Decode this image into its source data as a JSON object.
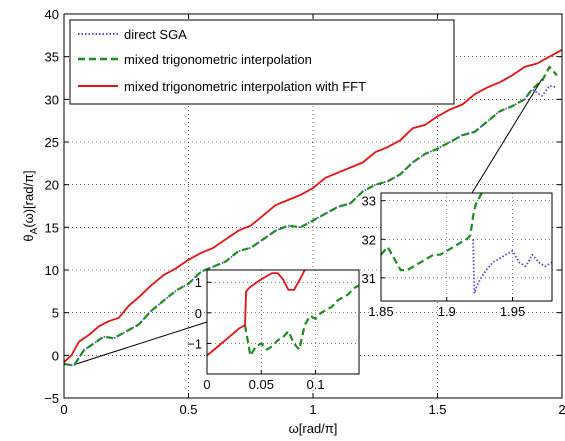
{
  "chart_data": {
    "type": "line",
    "title": "",
    "xlabel": "ω[rad/π]",
    "ylabel_main": "θ",
    "ylabel_sub": "A",
    "ylabel_rest": "(ω)[rad/π]",
    "xlim": [
      0,
      2
    ],
    "ylim": [
      -5,
      40
    ],
    "xticks": [
      "0",
      "0.5",
      "1",
      "1.5",
      "2"
    ],
    "yticks": [
      "−5",
      "0",
      "5",
      "10",
      "15",
      "20",
      "25",
      "30",
      "35",
      "40"
    ],
    "grid": "dotted",
    "legend_position": "top-left",
    "colors": {
      "direct": "#4b4bdc",
      "mixed": "#1e8c1e",
      "fft": "#e11414"
    },
    "series": [
      {
        "name": "direct SGA",
        "style": "dotted",
        "x": [
          0.0,
          0.04,
          0.08,
          0.12,
          0.16,
          0.2,
          0.25,
          0.3,
          0.35,
          0.4,
          0.45,
          0.5,
          0.55,
          0.6,
          0.65,
          0.7,
          0.75,
          0.8,
          0.85,
          0.9,
          0.95,
          1.0,
          1.05,
          1.1,
          1.15,
          1.2,
          1.25,
          1.3,
          1.35,
          1.4,
          1.45,
          1.5,
          1.55,
          1.6,
          1.65,
          1.7,
          1.75,
          1.8,
          1.85,
          1.88,
          1.92,
          1.95,
          1.98
        ],
        "y": [
          -1.0,
          -1.2,
          0.6,
          1.4,
          2.2,
          2.0,
          2.8,
          3.6,
          5.2,
          6.4,
          7.6,
          8.4,
          9.8,
          10.4,
          11.0,
          12.2,
          12.6,
          13.6,
          14.6,
          15.2,
          15.0,
          15.8,
          16.6,
          17.4,
          17.8,
          19.2,
          20.0,
          20.4,
          21.2,
          22.6,
          23.6,
          24.2,
          25.0,
          25.8,
          26.2,
          27.4,
          28.6,
          29.2,
          30.0,
          31.2,
          30.4,
          31.6,
          31.4
        ]
      },
      {
        "name": "mixed trigonometric interpolation",
        "style": "dashed",
        "x": [
          0.0,
          0.04,
          0.08,
          0.12,
          0.16,
          0.2,
          0.25,
          0.3,
          0.35,
          0.4,
          0.45,
          0.5,
          0.55,
          0.6,
          0.65,
          0.7,
          0.75,
          0.8,
          0.85,
          0.9,
          0.95,
          1.0,
          1.05,
          1.1,
          1.15,
          1.2,
          1.25,
          1.3,
          1.35,
          1.4,
          1.45,
          1.5,
          1.55,
          1.6,
          1.65,
          1.7,
          1.75,
          1.8,
          1.85,
          1.88,
          1.92,
          1.95,
          1.98
        ],
        "y": [
          -1.0,
          -1.2,
          0.6,
          1.4,
          2.2,
          2.0,
          2.8,
          3.6,
          5.2,
          6.4,
          7.6,
          8.4,
          9.8,
          10.4,
          11.0,
          12.2,
          12.6,
          13.6,
          14.6,
          15.2,
          15.0,
          15.8,
          16.6,
          17.4,
          17.8,
          19.2,
          20.0,
          20.4,
          21.2,
          22.6,
          23.6,
          24.2,
          25.0,
          25.8,
          26.2,
          27.4,
          28.6,
          29.2,
          30.0,
          31.2,
          32.2,
          33.8,
          32.8
        ]
      },
      {
        "name": "mixed trigonometric interpolation with FFT",
        "style": "solid",
        "x": [
          0.0,
          0.03,
          0.06,
          0.1,
          0.14,
          0.18,
          0.22,
          0.26,
          0.3,
          0.35,
          0.4,
          0.45,
          0.5,
          0.55,
          0.6,
          0.65,
          0.7,
          0.75,
          0.8,
          0.85,
          0.9,
          0.95,
          1.0,
          1.05,
          1.1,
          1.15,
          1.2,
          1.25,
          1.3,
          1.35,
          1.4,
          1.45,
          1.5,
          1.55,
          1.6,
          1.65,
          1.7,
          1.75,
          1.8,
          1.85,
          1.9,
          1.95,
          2.0
        ],
        "y": [
          -0.8,
          0.0,
          1.6,
          2.4,
          3.4,
          4.0,
          4.4,
          5.8,
          6.8,
          8.2,
          9.4,
          10.2,
          11.2,
          12.0,
          12.6,
          13.6,
          14.6,
          15.2,
          16.4,
          17.6,
          18.2,
          18.8,
          19.6,
          20.8,
          21.4,
          22.0,
          22.6,
          23.8,
          24.4,
          25.2,
          26.6,
          27.0,
          28.0,
          28.8,
          29.4,
          30.6,
          31.4,
          32.0,
          32.8,
          33.8,
          34.2,
          35.0,
          35.8
        ]
      }
    ],
    "insets": [
      {
        "id": "inset-low",
        "xlim": [
          0,
          0.14
        ],
        "ylim": [
          -2,
          1.4
        ],
        "xticks": [
          "0",
          "0.05",
          "0.1"
        ],
        "yticks": [
          "−1",
          "0",
          "1"
        ],
        "series": [
          {
            "name": "mixed trigonometric interpolation",
            "x": [
              0.035,
              0.04,
              0.045,
              0.05,
              0.055,
              0.06,
              0.065,
              0.07,
              0.075,
              0.08,
              0.085,
              0.09,
              0.095,
              0.1,
              0.105,
              0.11,
              0.115,
              0.12,
              0.125,
              0.13,
              0.135,
              0.14
            ],
            "y": [
              -0.4,
              -1.4,
              -1.1,
              -1.0,
              -1.2,
              -1.1,
              -0.9,
              -0.8,
              -0.6,
              -1.0,
              -1.2,
              -0.4,
              -0.1,
              -0.2,
              0.0,
              0.1,
              0.2,
              0.4,
              0.5,
              0.6,
              0.8,
              0.9
            ]
          },
          {
            "name": "mixed trigonometric interpolation with FFT",
            "x": [
              0.0,
              0.01,
              0.02,
              0.03,
              0.035,
              0.036,
              0.04,
              0.05,
              0.06,
              0.065,
              0.07,
              0.075,
              0.08,
              0.085,
              0.09,
              0.095
            ],
            "y": [
              -1.4,
              -1.1,
              -0.8,
              -0.5,
              -0.4,
              0.7,
              0.85,
              1.1,
              1.3,
              1.3,
              1.1,
              0.75,
              0.75,
              1.05,
              1.4,
              1.45
            ]
          }
        ]
      },
      {
        "id": "inset-high",
        "xlim": [
          1.85,
          1.98
        ],
        "ylim": [
          30.4,
          33.2
        ],
        "xticks": [
          "1.85",
          "1.9",
          "1.95"
        ],
        "yticks": [
          "31",
          "32",
          "33"
        ],
        "series": [
          {
            "name": "direct SGA",
            "x": [
              1.92,
              1.921,
              1.923,
              1.926,
              1.93,
              1.935,
              1.94,
              1.945,
              1.95,
              1.955,
              1.96,
              1.965,
              1.97,
              1.975,
              1.98
            ],
            "y": [
              32.0,
              30.6,
              30.8,
              31.0,
              31.2,
              31.4,
              31.5,
              31.6,
              31.7,
              31.4,
              31.3,
              31.6,
              31.4,
              31.3,
              31.4
            ]
          },
          {
            "name": "mixed trigonometric interpolation",
            "x": [
              1.85,
              1.855,
              1.86,
              1.865,
              1.87,
              1.875,
              1.88,
              1.885,
              1.89,
              1.895,
              1.9,
              1.905,
              1.91,
              1.915,
              1.918,
              1.92,
              1.922,
              1.925,
              1.928
            ],
            "y": [
              31.6,
              31.8,
              31.5,
              31.2,
              31.2,
              31.3,
              31.4,
              31.5,
              31.6,
              31.6,
              31.7,
              31.8,
              31.9,
              32.0,
              32.1,
              32.6,
              32.9,
              33.1,
              33.3
            ]
          }
        ]
      }
    ]
  }
}
